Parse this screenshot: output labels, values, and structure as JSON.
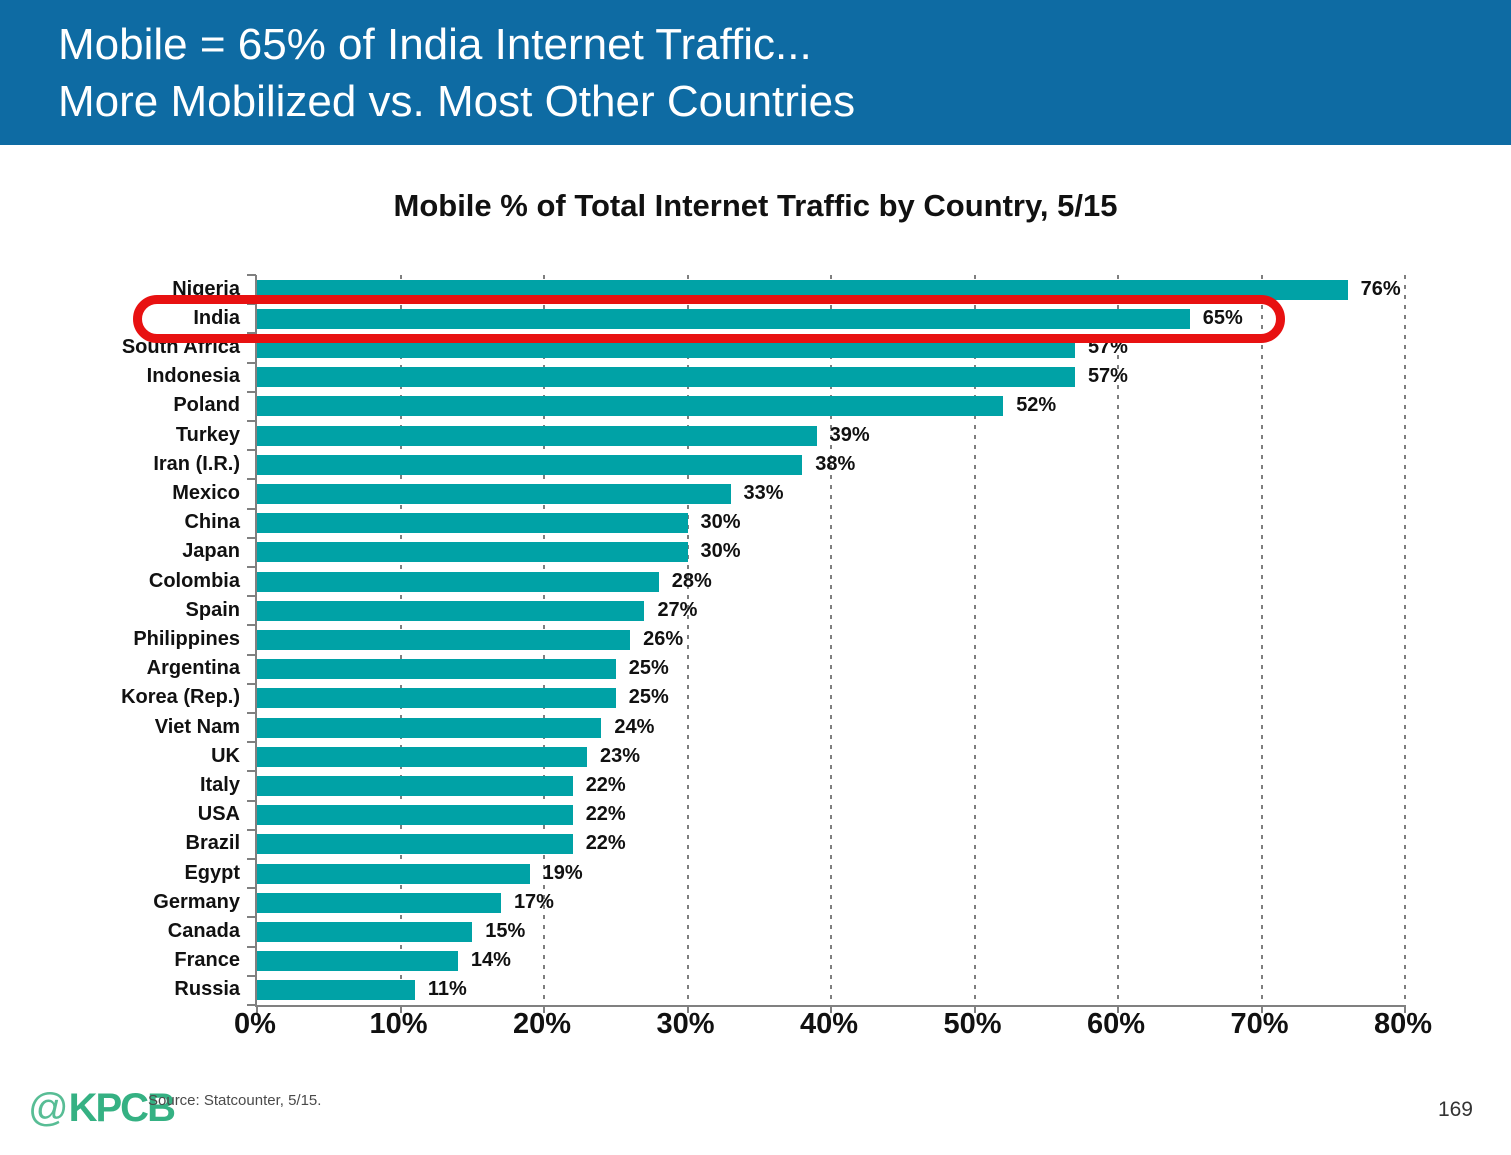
{
  "header": {
    "line1": "Mobile = 65% of India Internet Traffic...",
    "line2": "More Mobilized vs. Most Other Countries",
    "bg_color": "#0e6ba3",
    "text_color": "#ffffff"
  },
  "chart_data": {
    "type": "bar",
    "orientation": "horizontal",
    "title": "Mobile % of Total Internet Traffic by Country, 5/15",
    "categories": [
      "Nigeria",
      "India",
      "South Africa",
      "Indonesia",
      "Poland",
      "Turkey",
      "Iran (I.R.)",
      "Mexico",
      "China",
      "Japan",
      "Colombia",
      "Spain",
      "Philippines",
      "Argentina",
      "Korea (Rep.)",
      "Viet Nam",
      "UK",
      "Italy",
      "USA",
      "Brazil",
      "Egypt",
      "Germany",
      "Canada",
      "France",
      "Russia"
    ],
    "values": [
      76,
      65,
      57,
      57,
      52,
      39,
      38,
      33,
      30,
      30,
      28,
      27,
      26,
      25,
      25,
      24,
      23,
      22,
      22,
      22,
      19,
      17,
      15,
      14,
      11
    ],
    "value_labels": [
      "76%",
      "65%",
      "57%",
      "57%",
      "52%",
      "39%",
      "38%",
      "33%",
      "30%",
      "30%",
      "28%",
      "27%",
      "26%",
      "25%",
      "25%",
      "24%",
      "23%",
      "22%",
      "22%",
      "22%",
      "19%",
      "17%",
      "15%",
      "14%",
      "11%"
    ],
    "xlabel": "",
    "ylabel": "",
    "xlim": [
      0,
      80
    ],
    "x_ticks": [
      "0%",
      "10%",
      "20%",
      "30%",
      "40%",
      "50%",
      "60%",
      "70%",
      "80%"
    ],
    "x_tick_values": [
      0,
      10,
      20,
      30,
      40,
      50,
      60,
      70,
      80
    ],
    "grid": "vertical-dashed",
    "legend": "none",
    "bar_color": "#00a2a6",
    "axis_color": "#808080",
    "grid_color": "#7f7f7f",
    "highlight": {
      "country": "India",
      "box_color": "#e81111"
    }
  },
  "footer": {
    "logo_at": "@",
    "logo_text": "KPCB",
    "source": "Source: Statcounter, 5/15.",
    "page_number": "169"
  }
}
